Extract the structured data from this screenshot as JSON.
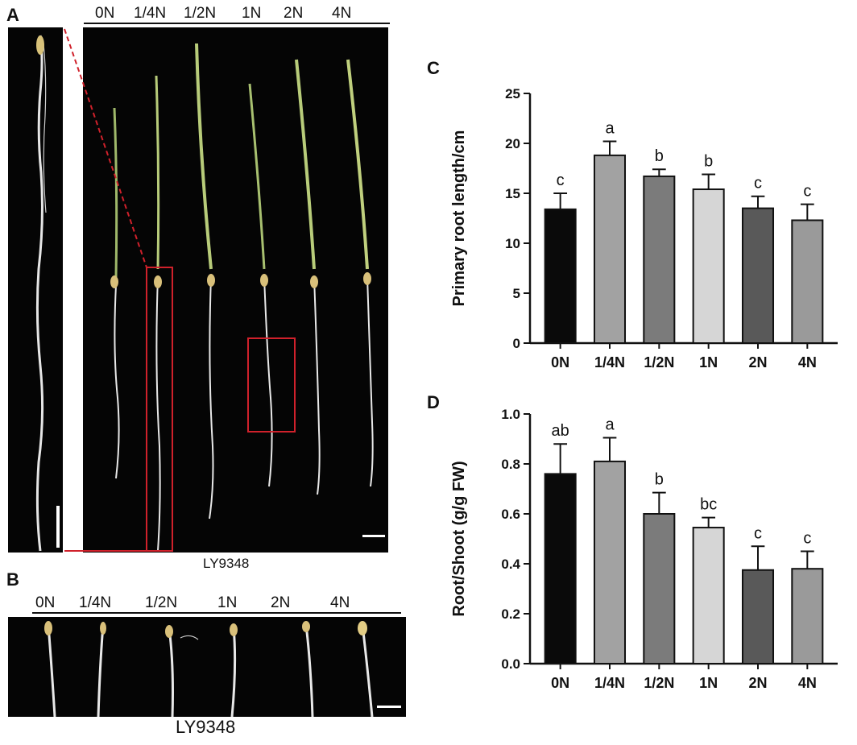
{
  "panels": {
    "a_letter": "A",
    "b_letter": "B",
    "c_letter": "C",
    "d_letter": "D"
  },
  "photo_a": {
    "treatments": [
      "0N",
      "1/4N",
      "1/2N",
      "1N",
      "2N",
      "4N"
    ],
    "caption": "LY9348"
  },
  "photo_b": {
    "treatments": [
      "0N",
      "1/4N",
      "1/2N",
      "1N",
      "2N",
      "4N"
    ],
    "caption": "LY9348"
  },
  "colors": {
    "bar_fills": [
      "#0a0a0a",
      "#a2a2a2",
      "#7b7b7b",
      "#d6d6d6",
      "#595959",
      "#9a9a9a"
    ],
    "highlight_box": "#d0212b",
    "photo_bg": "#050505"
  },
  "chart_data": [
    {
      "type": "bar",
      "categories": [
        "0N",
        "1/4N",
        "1/2N",
        "1N",
        "2N",
        "4N"
      ],
      "values": [
        13.4,
        18.8,
        16.7,
        15.4,
        13.5,
        12.3
      ],
      "errors": [
        1.6,
        1.4,
        0.7,
        1.5,
        1.2,
        1.6
      ],
      "significance": [
        "c",
        "a",
        "b",
        "b",
        "c",
        "c"
      ],
      "xlabel": "",
      "ylabel": "Primary root length/cm",
      "ylim": [
        0,
        25
      ],
      "yticks": [
        "0",
        "5",
        "10",
        "15",
        "20",
        "25"
      ],
      "grid": false
    },
    {
      "type": "bar",
      "categories": [
        "0N",
        "1/4N",
        "1/2N",
        "1N",
        "2N",
        "4N"
      ],
      "values": [
        0.76,
        0.81,
        0.6,
        0.545,
        0.375,
        0.38
      ],
      "errors": [
        0.12,
        0.095,
        0.085,
        0.04,
        0.095,
        0.07
      ],
      "significance": [
        "ab",
        "a",
        "b",
        "bc",
        "c",
        "c"
      ],
      "xlabel": "",
      "ylabel": "Root/Shoot (g/g FW)",
      "ylim": [
        0,
        1.0
      ],
      "yticks": [
        "0.0",
        "0.2",
        "0.4",
        "0.6",
        "0.8",
        "1.0"
      ],
      "grid": false
    }
  ]
}
